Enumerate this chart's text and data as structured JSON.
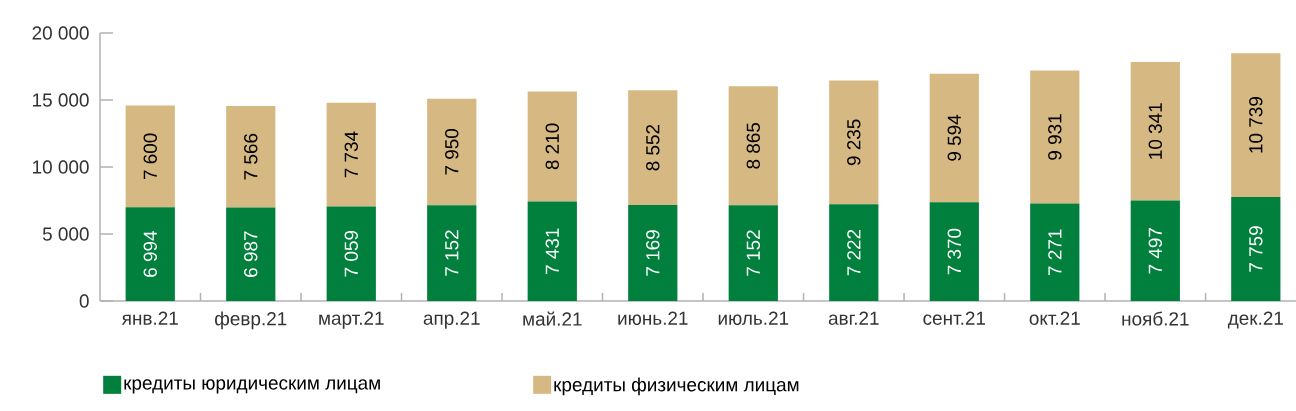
{
  "chart_data": {
    "type": "bar",
    "stacked": true,
    "legend": "bottom",
    "categories": [
      "янв.21",
      "февр.21",
      "март.21",
      "апр.21",
      "май.21",
      "июнь.21",
      "июль.21",
      "авг.21",
      "сент.21",
      "окт.21",
      "нояб.21",
      "дек.21"
    ],
    "series": [
      {
        "name": "кредиты юридическим лицам",
        "color": "#007f3d",
        "values": [
          6994,
          6987,
          7059,
          7152,
          7431,
          7169,
          7152,
          7222,
          7370,
          7271,
          7497,
          7759
        ],
        "value_labels": [
          "6 994",
          "6 987",
          "7 059",
          "7 152",
          "7 431",
          "7 169",
          "7 152",
          "7 222",
          "7 370",
          "7 271",
          "7 497",
          "7 759"
        ]
      },
      {
        "name": "кредиты физическим лицам",
        "color": "#d6b883",
        "values": [
          7600,
          7566,
          7734,
          7950,
          8210,
          8552,
          8865,
          9235,
          9594,
          9931,
          10341,
          10739
        ],
        "value_labels": [
          "7 600",
          "7 566",
          "7 734",
          "7 950",
          "8 210",
          "8 552",
          "8 865",
          "9 235",
          "9 594",
          "9 931",
          "10 341",
          "10 739"
        ]
      }
    ],
    "ylim": [
      0,
      20000
    ],
    "yticks": [
      0,
      {
        "value": 5000,
        "label": "5 000"
      },
      {
        "value": 10000,
        "label": "10 000"
      },
      {
        "value": 15000,
        "label": "15 000"
      },
      {
        "value": 20000,
        "label": "20 000"
      }
    ]
  }
}
